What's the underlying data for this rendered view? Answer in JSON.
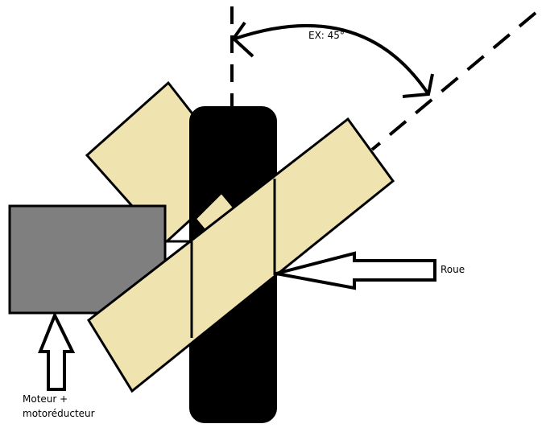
{
  "labels": {
    "angle": "EX: 45°",
    "wheel": "Roue",
    "motor_line1": "Moteur +",
    "motor_line2": "motoréducteur"
  },
  "colors": {
    "panel": "#EFE4B0",
    "motor": "#7F7F7F",
    "wheel": "#000000",
    "stroke": "#000000",
    "background": "#FFFFFF"
  }
}
